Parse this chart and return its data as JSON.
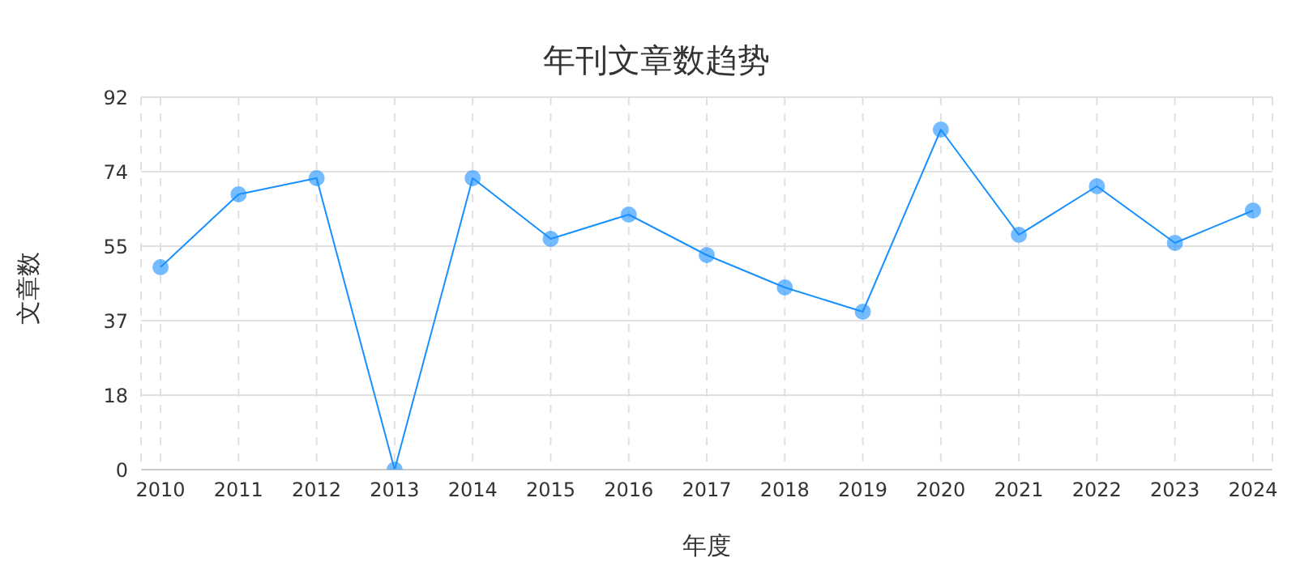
{
  "chart_data": {
    "type": "line",
    "title": "年刊文章数趋势",
    "xlabel": "年度",
    "ylabel": "文章数",
    "categories": [
      "2010",
      "2011",
      "2012",
      "2013",
      "2014",
      "2015",
      "2016",
      "2017",
      "2018",
      "2019",
      "2020",
      "2021",
      "2022",
      "2023",
      "2024"
    ],
    "series": [
      {
        "color": "#1890ff",
        "values": [
          50,
          68,
          72,
          0,
          72,
          57,
          63,
          53,
          45,
          39,
          84,
          58,
          70,
          56,
          64
        ]
      }
    ],
    "ylim": [
      0,
      92
    ],
    "yticks": [
      0,
      {
        "value": 18.4,
        "label": "18"
      },
      {
        "value": 36.8,
        "label": "37"
      },
      {
        "value": 55.2,
        "label": "55"
      },
      {
        "value": 73.6,
        "label": "74"
      },
      92
    ],
    "grid": true,
    "marker": "circle",
    "line_style": "solid"
  }
}
